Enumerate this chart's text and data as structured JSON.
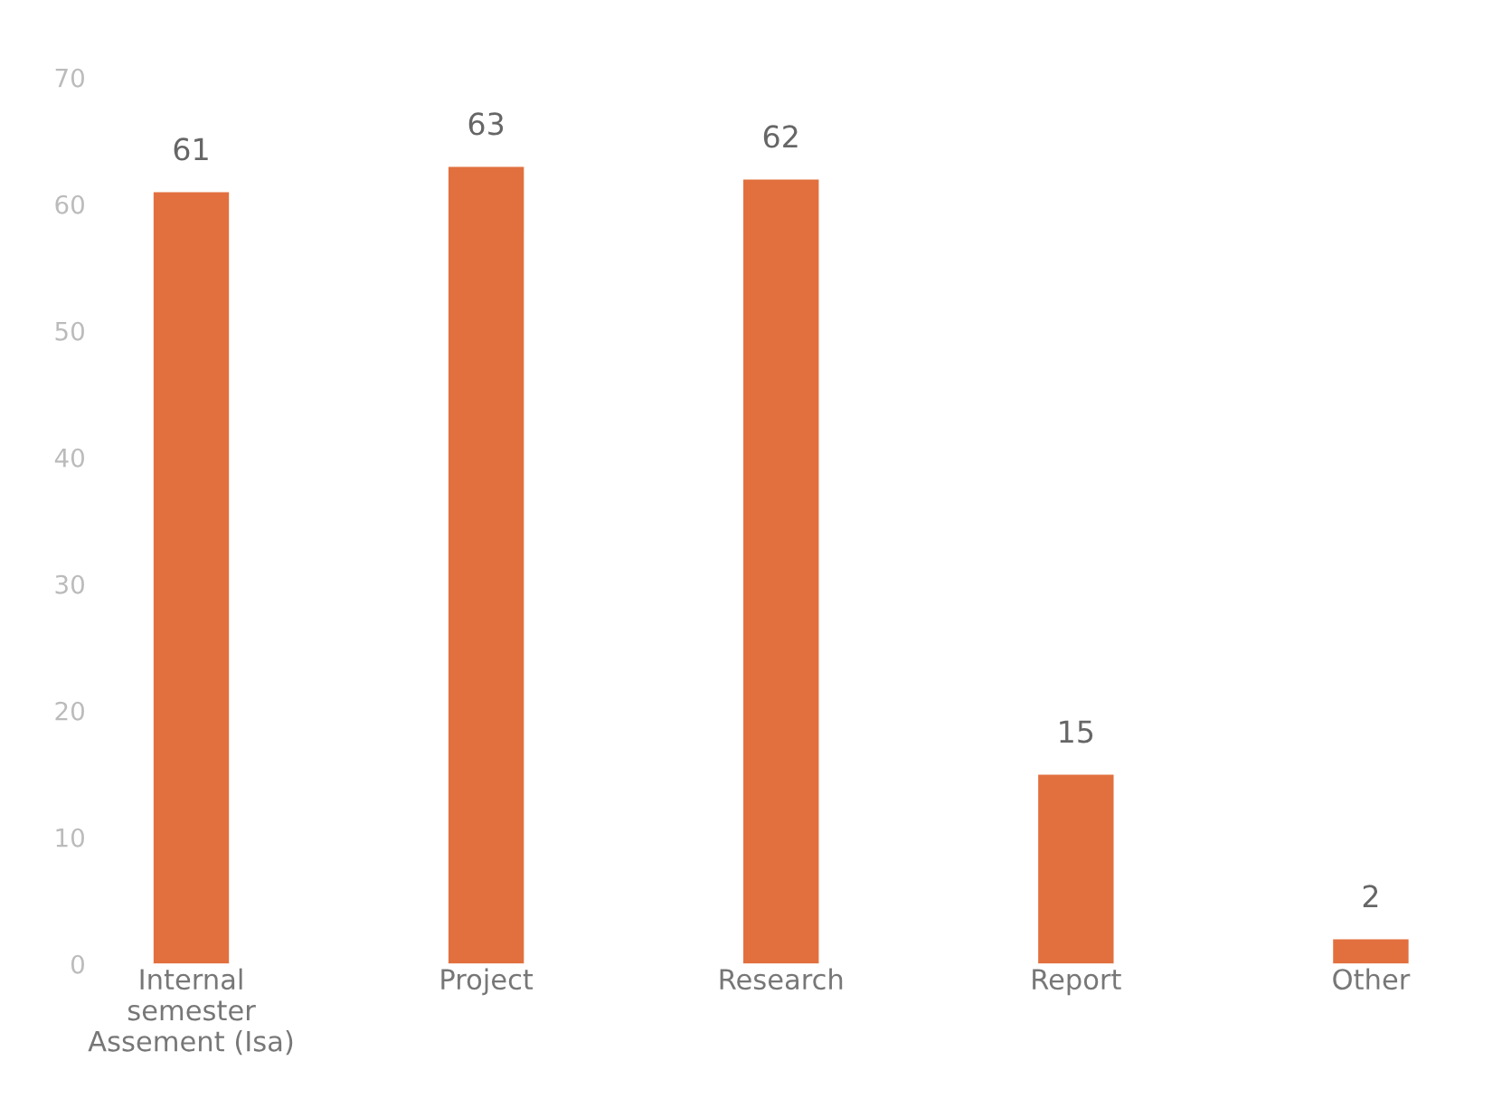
{
  "chart_data": {
    "type": "bar",
    "categories": [
      "Internal\nsemester\nAssement (Isa)",
      "Project",
      "Research",
      "Report",
      "Other"
    ],
    "values": [
      61,
      63,
      62,
      15,
      2
    ],
    "color": "#e2703f",
    "ylim": [
      0,
      70
    ],
    "yticks": [
      0,
      10,
      20,
      30,
      40,
      50,
      60,
      70
    ],
    "data_labels": true,
    "grid": false,
    "legend": false
  }
}
